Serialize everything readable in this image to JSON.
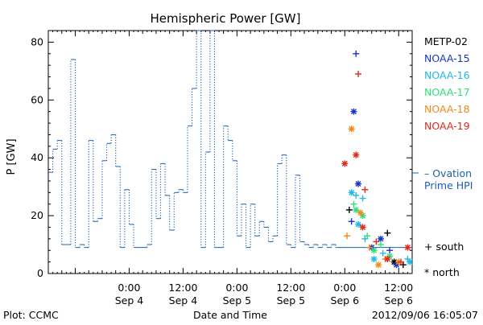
{
  "chart_data": {
    "type": "line",
    "title": "Hemispheric Power [GW]",
    "xlabel": "Date and Time",
    "ylabel": "P [GW]",
    "ylim": [
      0,
      84
    ],
    "xlim": [
      "2012-09-03 06:00",
      "2012-09-06 15:00"
    ],
    "yticks": [
      0,
      20,
      40,
      60,
      80
    ],
    "xticks": [
      {
        "time": "2012-09-04 00:00",
        "line1": "0:00",
        "line2": "Sep 4"
      },
      {
        "time": "2012-09-04 12:00",
        "line1": "12:00",
        "line2": "Sep 4"
      },
      {
        "time": "2012-09-05 00:00",
        "line1": "0:00",
        "line2": "Sep 5"
      },
      {
        "time": "2012-09-05 12:00",
        "line1": "12:00",
        "line2": "Sep 5"
      },
      {
        "time": "2012-09-06 00:00",
        "line1": "0:00",
        "line2": "Sep 6"
      },
      {
        "time": "2012-09-06 12:00",
        "line1": "12:00",
        "line2": "Sep 6"
      }
    ],
    "grid": false,
    "legend_position": "right",
    "legend": [
      {
        "name": "METP-02",
        "color": "#000000"
      },
      {
        "name": "NOAA-15",
        "color": "#1a34c8"
      },
      {
        "name": "NOAA-16",
        "color": "#22b8e8"
      },
      {
        "name": "NOAA-17",
        "color": "#2ee07a"
      },
      {
        "name": "NOAA-18",
        "color": "#f08a1a"
      },
      {
        "name": "NOAA-19",
        "color": "#e02a1a"
      }
    ],
    "ovation": {
      "name": "Ovation Prime HPI",
      "color": "#1a5fb4",
      "points": [
        [
          "2012-09-03 06:00",
          35
        ],
        [
          "2012-09-03 07:00",
          43
        ],
        [
          "2012-09-03 08:00",
          46
        ],
        [
          "2012-09-03 09:00",
          10
        ],
        [
          "2012-09-03 11:00",
          74
        ],
        [
          "2012-09-03 12:00",
          9
        ],
        [
          "2012-09-03 13:00",
          10
        ],
        [
          "2012-09-03 14:00",
          9
        ],
        [
          "2012-09-03 15:00",
          46
        ],
        [
          "2012-09-03 16:00",
          18
        ],
        [
          "2012-09-03 17:00",
          19
        ],
        [
          "2012-09-03 18:00",
          39
        ],
        [
          "2012-09-03 19:00",
          45
        ],
        [
          "2012-09-03 20:00",
          48
        ],
        [
          "2012-09-03 21:00",
          37
        ],
        [
          "2012-09-03 22:00",
          9
        ],
        [
          "2012-09-03 23:00",
          29
        ],
        [
          "2012-09-04 00:00",
          17
        ],
        [
          "2012-09-04 01:00",
          9
        ],
        [
          "2012-09-04 04:00",
          10
        ],
        [
          "2012-09-04 05:00",
          36
        ],
        [
          "2012-09-04 06:00",
          19
        ],
        [
          "2012-09-04 07:00",
          38
        ],
        [
          "2012-09-04 08:00",
          27
        ],
        [
          "2012-09-04 09:00",
          15
        ],
        [
          "2012-09-04 10:00",
          28
        ],
        [
          "2012-09-04 11:00",
          29
        ],
        [
          "2012-09-04 12:00",
          28
        ],
        [
          "2012-09-04 13:00",
          51
        ],
        [
          "2012-09-04 14:00",
          64
        ],
        [
          "2012-09-04 15:00",
          84
        ],
        [
          "2012-09-04 16:00",
          9
        ],
        [
          "2012-09-04 17:00",
          42
        ],
        [
          "2012-09-04 18:00",
          84
        ],
        [
          "2012-09-04 19:00",
          9
        ],
        [
          "2012-09-04 21:00",
          51
        ],
        [
          "2012-09-04 22:00",
          46
        ],
        [
          "2012-09-04 23:00",
          39
        ],
        [
          "2012-09-05 00:00",
          13
        ],
        [
          "2012-09-05 01:00",
          24
        ],
        [
          "2012-09-05 02:00",
          9
        ],
        [
          "2012-09-05 03:00",
          24
        ],
        [
          "2012-09-05 04:00",
          13
        ],
        [
          "2012-09-05 05:00",
          18
        ],
        [
          "2012-09-05 06:00",
          16
        ],
        [
          "2012-09-05 07:00",
          11
        ],
        [
          "2012-09-05 08:00",
          13
        ],
        [
          "2012-09-05 09:00",
          38
        ],
        [
          "2012-09-05 10:00",
          41
        ],
        [
          "2012-09-05 11:00",
          10
        ],
        [
          "2012-09-05 12:00",
          9
        ],
        [
          "2012-09-05 13:00",
          34
        ],
        [
          "2012-09-05 14:00",
          11
        ],
        [
          "2012-09-05 15:00",
          10
        ],
        [
          "2012-09-05 16:00",
          9
        ],
        [
          "2012-09-05 17:00",
          10
        ],
        [
          "2012-09-05 18:00",
          9
        ],
        [
          "2012-09-05 19:00",
          10
        ],
        [
          "2012-09-05 20:00",
          9
        ],
        [
          "2012-09-05 21:00",
          10
        ],
        [
          "2012-09-05 22:00",
          9
        ],
        [
          "2012-09-06 15:00",
          9
        ]
      ]
    },
    "series": [
      {
        "name": "METP-02",
        "color": "#000000",
        "points": [
          {
            "x": "2012-09-06 01:00",
            "y": 22,
            "hemisphere": "south"
          },
          {
            "x": "2012-09-06 09:30",
            "y": 14,
            "hemisphere": "south"
          },
          {
            "x": "2012-09-06 11:00",
            "y": 4,
            "hemisphere": "north"
          },
          {
            "x": "2012-09-06 13:00",
            "y": 3,
            "hemisphere": "south"
          }
        ]
      },
      {
        "name": "NOAA-15",
        "color": "#1a34c8",
        "points": [
          {
            "x": "2012-09-06 02:30",
            "y": 76,
            "hemisphere": "south"
          },
          {
            "x": "2012-09-06 02:00",
            "y": 56,
            "hemisphere": "north"
          },
          {
            "x": "2012-09-06 03:00",
            "y": 31,
            "hemisphere": "north"
          },
          {
            "x": "2012-09-06 01:30",
            "y": 18,
            "hemisphere": "south"
          },
          {
            "x": "2012-09-06 06:00",
            "y": 9,
            "hemisphere": "north"
          },
          {
            "x": "2012-09-06 08:00",
            "y": 12,
            "hemisphere": "north"
          },
          {
            "x": "2012-09-06 10:00",
            "y": 8,
            "hemisphere": "south"
          },
          {
            "x": "2012-09-06 11:30",
            "y": 3,
            "hemisphere": "north"
          }
        ]
      },
      {
        "name": "NOAA-16",
        "color": "#22b8e8",
        "points": [
          {
            "x": "2012-09-06 01:30",
            "y": 28,
            "hemisphere": "north"
          },
          {
            "x": "2012-09-06 02:30",
            "y": 27,
            "hemisphere": "south"
          },
          {
            "x": "2012-09-06 04:00",
            "y": 26,
            "hemisphere": "south"
          },
          {
            "x": "2012-09-06 03:00",
            "y": 17,
            "hemisphere": "north"
          },
          {
            "x": "2012-09-06 04:30",
            "y": 12,
            "hemisphere": "south"
          },
          {
            "x": "2012-09-06 06:30",
            "y": 5,
            "hemisphere": "north"
          },
          {
            "x": "2012-09-06 08:30",
            "y": 7,
            "hemisphere": "south"
          },
          {
            "x": "2012-09-06 14:00",
            "y": 5,
            "hemisphere": "south"
          },
          {
            "x": "2012-09-06 14:30",
            "y": 4,
            "hemisphere": "north"
          }
        ]
      },
      {
        "name": "NOAA-17",
        "color": "#2ee07a",
        "points": [
          {
            "x": "2012-09-06 02:00",
            "y": 24,
            "hemisphere": "south"
          },
          {
            "x": "2012-09-06 02:30",
            "y": 22,
            "hemisphere": "north"
          },
          {
            "x": "2012-09-06 04:00",
            "y": 20,
            "hemisphere": "north"
          },
          {
            "x": "2012-09-06 05:00",
            "y": 13,
            "hemisphere": "south"
          },
          {
            "x": "2012-09-06 06:30",
            "y": 8,
            "hemisphere": "north"
          },
          {
            "x": "2012-09-06 08:00",
            "y": 10,
            "hemisphere": "south"
          },
          {
            "x": "2012-09-06 10:00",
            "y": 6,
            "hemisphere": "north"
          }
        ]
      },
      {
        "name": "NOAA-18",
        "color": "#f08a1a",
        "points": [
          {
            "x": "2012-09-06 01:30",
            "y": 50,
            "hemisphere": "north"
          },
          {
            "x": "2012-09-06 03:30",
            "y": 21,
            "hemisphere": "north"
          },
          {
            "x": "2012-09-06 00:30",
            "y": 13,
            "hemisphere": "south"
          },
          {
            "x": "2012-09-06 05:30",
            "y": 9,
            "hemisphere": "south"
          },
          {
            "x": "2012-09-06 07:30",
            "y": 3,
            "hemisphere": "north"
          },
          {
            "x": "2012-09-06 09:00",
            "y": 5,
            "hemisphere": "south"
          },
          {
            "x": "2012-09-06 12:00",
            "y": 4,
            "hemisphere": "north"
          }
        ]
      },
      {
        "name": "NOAA-19",
        "color": "#e02a1a",
        "points": [
          {
            "x": "2012-09-06 03:00",
            "y": 69,
            "hemisphere": "south"
          },
          {
            "x": "2012-09-06 02:30",
            "y": 41,
            "hemisphere": "north"
          },
          {
            "x": "2012-09-06 00:00",
            "y": 38,
            "hemisphere": "north"
          },
          {
            "x": "2012-09-06 04:30",
            "y": 29,
            "hemisphere": "south"
          },
          {
            "x": "2012-09-06 04:00",
            "y": 16,
            "hemisphere": "north"
          },
          {
            "x": "2012-09-06 07:00",
            "y": 11,
            "hemisphere": "south"
          },
          {
            "x": "2012-09-06 09:30",
            "y": 5,
            "hemisphere": "north"
          },
          {
            "x": "2012-09-06 12:30",
            "y": 4,
            "hemisphere": "south"
          },
          {
            "x": "2012-09-06 14:00",
            "y": 9,
            "hemisphere": "north"
          }
        ]
      }
    ]
  },
  "labels": {
    "ovation_line1": "– Ovation",
    "ovation_line2": "Prime HPI",
    "south_key": "+ south",
    "north_key": "* north",
    "footer_left": "Plot: CCMC",
    "footer_center": "Date and Time",
    "footer_right": "2012/09/06 16:05:07"
  }
}
